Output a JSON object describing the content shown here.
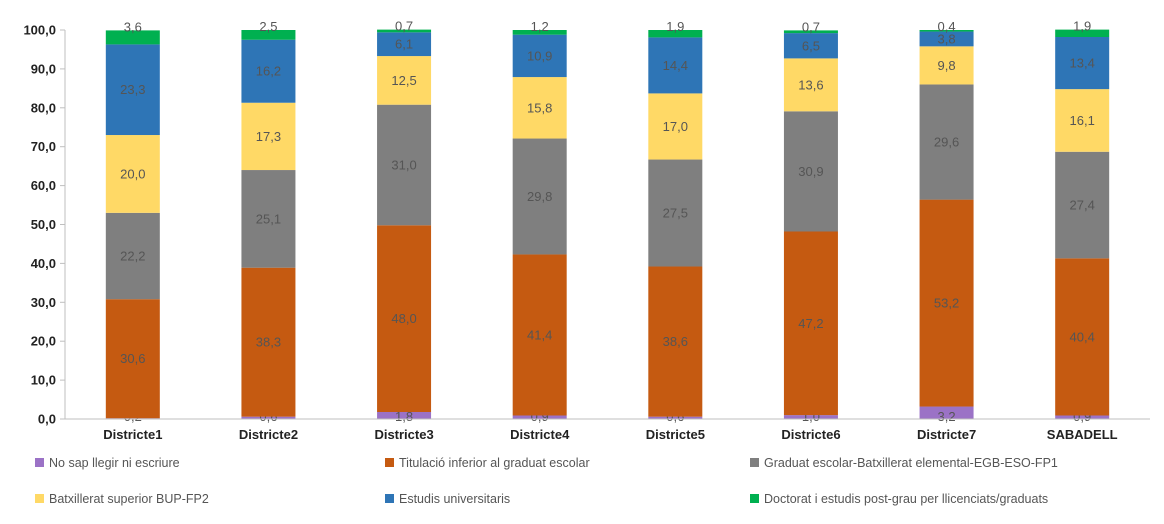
{
  "chart_data": {
    "type": "bar",
    "stacked": true,
    "title": "",
    "xlabel": "",
    "ylabel": "",
    "ylim": [
      0,
      100
    ],
    "yticks": [
      "0,0",
      "10,0",
      "20,0",
      "30,0",
      "40,0",
      "50,0",
      "60,0",
      "70,0",
      "80,0",
      "90,0",
      "100,0"
    ],
    "grid": false,
    "legend_position": "bottom",
    "categories": [
      "Districte1",
      "Districte2",
      "Districte3",
      "Districte4",
      "Districte5",
      "Districte6",
      "Districte7",
      "SABADELL"
    ],
    "series": [
      {
        "name": "No sap llegir ni escriure",
        "color": "#9b72c6",
        "values": [
          0.2,
          0.6,
          1.8,
          0.9,
          0.6,
          1.0,
          3.2,
          0.9
        ],
        "labels": [
          "0,2",
          "0,6",
          "1,8",
          "0,9",
          "0,6",
          "1,0",
          "3,2",
          "0,9"
        ]
      },
      {
        "name": "Titulació inferior al graduat escolar",
        "color": "#c55a11",
        "values": [
          30.6,
          38.3,
          48.0,
          41.4,
          38.6,
          47.2,
          53.2,
          40.4
        ],
        "labels": [
          "30,6",
          "38,3",
          "48,0",
          "41,4",
          "38,6",
          "47,2",
          "53,2",
          "40,4"
        ]
      },
      {
        "name": "Graduat escolar-Batxillerat elemental-EGB-ESO-FP1",
        "color": "#7f7f7f",
        "values": [
          22.2,
          25.1,
          31.0,
          29.8,
          27.5,
          30.9,
          29.6,
          27.4
        ],
        "labels": [
          "22,2",
          "25,1",
          "31,0",
          "29,8",
          "27,5",
          "30,9",
          "29,6",
          "27,4"
        ]
      },
      {
        "name": "Batxillerat superior BUP-FP2",
        "color": "#ffd966",
        "values": [
          20.0,
          17.3,
          12.5,
          15.8,
          17.0,
          13.6,
          9.8,
          16.1
        ],
        "labels": [
          "20,0",
          "17,3",
          "12,5",
          "15,8",
          "17,0",
          "13,6",
          "9,8",
          "16,1"
        ]
      },
      {
        "name": "Estudis universitaris",
        "color": "#2e75b6",
        "values": [
          23.3,
          16.2,
          6.1,
          10.9,
          14.4,
          6.5,
          3.8,
          13.4
        ],
        "labels": [
          "23,3",
          "16,2",
          "6,1",
          "10,9",
          "14,4",
          "6,5",
          "3,8",
          "13,4"
        ]
      },
      {
        "name": "Doctorat i estudis post-grau per llicenciats/graduats",
        "color": "#00b050",
        "values": [
          3.6,
          2.5,
          0.7,
          1.2,
          1.9,
          0.7,
          0.4,
          1.9
        ],
        "labels": [
          "3,6",
          "2,5",
          "0,7",
          "1,2",
          "1,9",
          "0,7",
          "0,4",
          "1,9"
        ]
      }
    ]
  }
}
